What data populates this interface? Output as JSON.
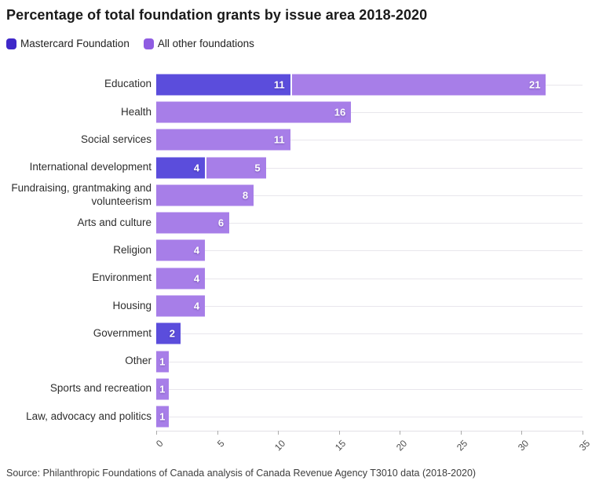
{
  "title": "Percentage of total foundation grants by issue area 2018-2020",
  "legend": {
    "items": [
      {
        "label": "Mastercard Foundation",
        "color": "#3f28c9"
      },
      {
        "label": "All other foundations",
        "color": "#8f5ce2"
      }
    ]
  },
  "colors": {
    "mastercard_bar": "#5b4ddc",
    "others_bar": "#a77ee8",
    "grid": "#e8e6ec",
    "value_label_text": "#ffffff"
  },
  "chart_data": {
    "type": "bar",
    "orientation": "horizontal",
    "stacked": true,
    "title": "Percentage of total foundation grants by issue area 2018-2020",
    "categories": [
      "Education",
      "Health",
      "Social services",
      "International development",
      "Fundraising, grantmaking and volunteerism",
      "Arts and culture",
      "Religion",
      "Environment",
      "Housing",
      "Government",
      "Other",
      "Sports and recreation",
      "Law, advocacy and politics"
    ],
    "series": [
      {
        "name": "Mastercard Foundation",
        "values": [
          11,
          0,
          0,
          4,
          0,
          0,
          0,
          0,
          0,
          2,
          0,
          0,
          0
        ]
      },
      {
        "name": "All other foundations",
        "values": [
          21,
          16,
          11,
          5,
          8,
          6,
          4,
          4,
          4,
          0,
          1,
          1,
          1
        ]
      }
    ],
    "xlabel": "",
    "ylabel": "",
    "xlim": [
      0,
      35
    ],
    "xticks": [
      0,
      5,
      10,
      15,
      20,
      25,
      30,
      35
    ],
    "grid": "horizontal per-category lines",
    "legend_position": "top-left",
    "value_labels": "white, inside right end of each segment"
  },
  "source": "Source: Philanthropic Foundations of Canada analysis of Canada Revenue Agency T3010 data (2018-2020)"
}
